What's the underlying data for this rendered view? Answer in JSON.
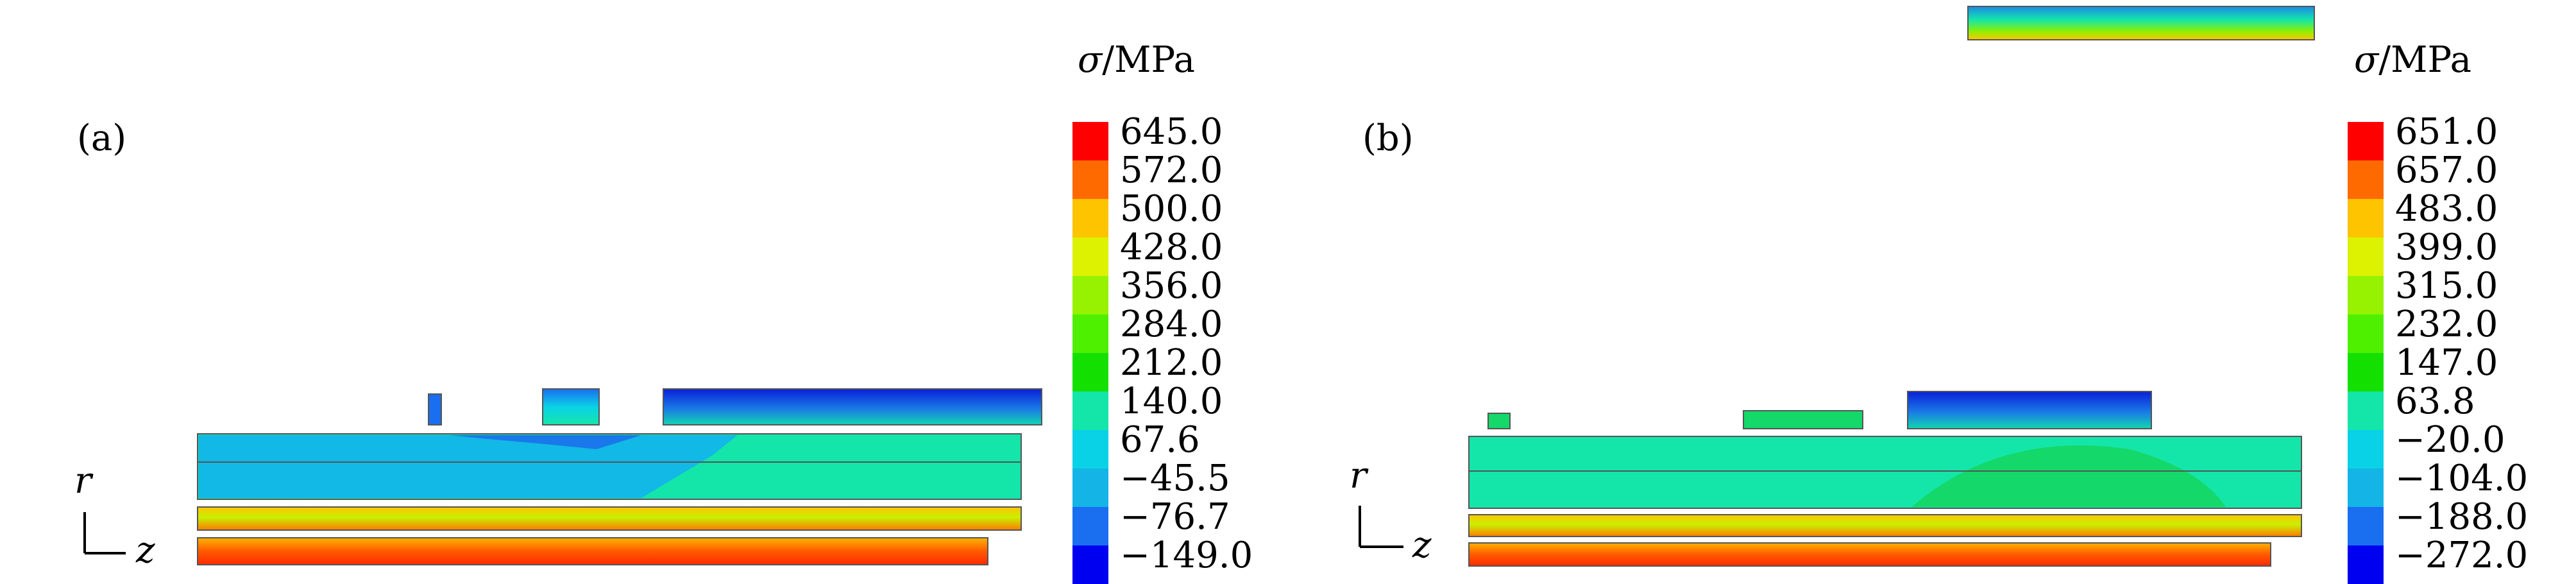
{
  "panels": [
    {
      "label": "(a)",
      "unit_symbol": "σ",
      "unit_text": "/MPa",
      "axis_r": "r",
      "axis_z": "z",
      "legend_values": [
        "645.0",
        "572.0",
        "500.0",
        "428.0",
        "356.0",
        "284.0",
        "212.0",
        "140.0",
        "67.6",
        "−45.5",
        "−76.7",
        "−149.0"
      ],
      "legend_colors": [
        "#ff0000",
        "#ff6a00",
        "#ffc400",
        "#dcf200",
        "#96f200",
        "#4ef000",
        "#14e000",
        "#14e6aa",
        "#0ad2e6",
        "#14b4e6",
        "#1a6ef0",
        "#0000f0"
      ]
    },
    {
      "label": "(b)",
      "unit_symbol": "σ",
      "unit_text": "/MPa",
      "axis_r": "r",
      "axis_z": "z",
      "legend_values": [
        "651.0",
        "657.0",
        "483.0",
        "399.0",
        "315.0",
        "232.0",
        "147.0",
        "63.8",
        "−20.0",
        "−104.0",
        "−188.0",
        "−272.0"
      ],
      "legend_colors": [
        "#ff0000",
        "#ff6a00",
        "#ffc400",
        "#dcf200",
        "#96f200",
        "#4ef000",
        "#14e000",
        "#14e6aa",
        "#0ad2e6",
        "#14b4e6",
        "#1a6ef0",
        "#0000f0"
      ]
    }
  ]
}
